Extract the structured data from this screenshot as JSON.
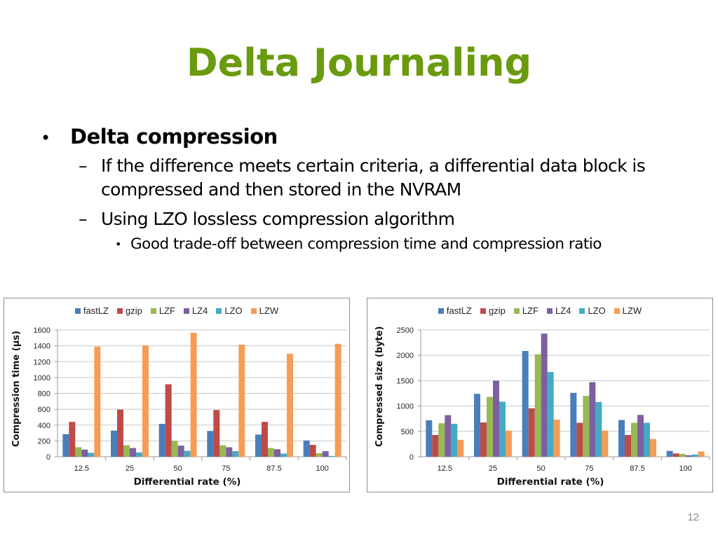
{
  "slide": {
    "title": "Delta Journaling",
    "page_number": "12",
    "title_color": "#6a9a0e"
  },
  "bullets": {
    "level1": {
      "marker": "•",
      "text": "Delta compression"
    },
    "level2": [
      {
        "marker": "–",
        "text": "If the difference meets certain criteria, a differential data block is compressed and then stored in the NVRAM"
      },
      {
        "marker": "–",
        "text": "Using LZO lossless compression algorithm"
      }
    ],
    "level3": [
      {
        "marker": "•",
        "text": "Good trade-off between compression time and compression ratio"
      }
    ]
  },
  "series_colors": {
    "fastLZ": "#4a7ebb",
    "gzip": "#be4b48",
    "LZF": "#98b954",
    "LZ4": "#7d60a0",
    "LZO": "#46aac5",
    "LZW": "#f59d56"
  },
  "chart_data": [
    {
      "type": "bar",
      "title": "",
      "xlabel": "Differential rate (%)",
      "ylabel": "Compression time (μs)",
      "ylim": [
        0,
        1600
      ],
      "yticks": [
        0,
        200,
        400,
        600,
        800,
        1000,
        1200,
        1400,
        1600
      ],
      "grid": true,
      "legend_position": "top",
      "categories": [
        "12.5",
        "25",
        "50",
        "75",
        "87.5",
        "100"
      ],
      "series": [
        {
          "name": "fastLZ",
          "values": [
            285,
            330,
            415,
            325,
            280,
            205
          ]
        },
        {
          "name": "gzip",
          "values": [
            440,
            595,
            915,
            590,
            440,
            150
          ]
        },
        {
          "name": "LZF",
          "values": [
            120,
            145,
            200,
            145,
            110,
            45
          ]
        },
        {
          "name": "LZ4",
          "values": [
            90,
            110,
            140,
            120,
            95,
            70
          ]
        },
        {
          "name": "LZO",
          "values": [
            50,
            55,
            75,
            70,
            40,
            10
          ]
        },
        {
          "name": "LZW",
          "values": [
            1390,
            1405,
            1565,
            1415,
            1300,
            1425
          ]
        }
      ]
    },
    {
      "type": "bar",
      "title": "",
      "xlabel": "Differential rate (%)",
      "ylabel": "Compressed size (byte)",
      "ylim": [
        0,
        2500
      ],
      "yticks": [
        0,
        500,
        1000,
        1500,
        2000,
        2500
      ],
      "grid": true,
      "legend_position": "top",
      "categories": [
        "12.5",
        "25",
        "50",
        "75",
        "87.5",
        "100"
      ],
      "series": [
        {
          "name": "fastLZ",
          "values": [
            720,
            1240,
            2085,
            1260,
            725,
            115
          ]
        },
        {
          "name": "gzip",
          "values": [
            430,
            675,
            955,
            670,
            430,
            65
          ]
        },
        {
          "name": "LZF",
          "values": [
            660,
            1180,
            2020,
            1200,
            670,
            55
          ]
        },
        {
          "name": "LZ4",
          "values": [
            820,
            1500,
            2430,
            1470,
            825,
            30
          ]
        },
        {
          "name": "LZO",
          "values": [
            650,
            1085,
            1670,
            1080,
            670,
            45
          ]
        },
        {
          "name": "LZW",
          "values": [
            335,
            515,
            730,
            515,
            350,
            105
          ]
        }
      ]
    }
  ]
}
